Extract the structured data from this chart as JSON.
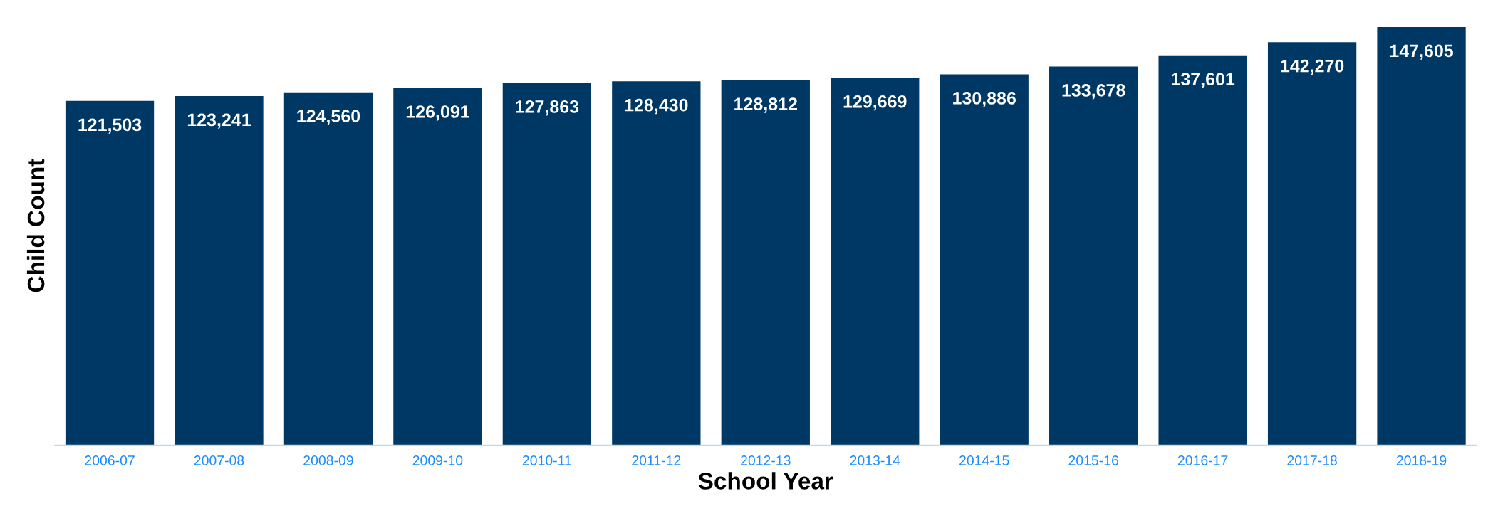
{
  "chart_data": {
    "type": "bar",
    "xlabel": "School Year",
    "ylabel": "Child Count",
    "categories": [
      "2006-07",
      "2007-08",
      "2008-09",
      "2009-10",
      "2010-11",
      "2011-12",
      "2012-13",
      "2013-14",
      "2014-15",
      "2015-16",
      "2016-17",
      "2017-18",
      "2018-19"
    ],
    "values": [
      121503,
      123241,
      124560,
      126091,
      127863,
      128430,
      128812,
      129669,
      130886,
      133678,
      137601,
      142270,
      147605
    ],
    "color": "#003865",
    "value_labels": [
      "121,503",
      "123,241",
      "124,560",
      "126,091",
      "127,863",
      "128,430",
      "128,812",
      "129,669",
      "130,886",
      "133,678",
      "137,601",
      "142,270",
      "147,605"
    ],
    "tick_labels": "x",
    "grid": false,
    "legend": false
  }
}
